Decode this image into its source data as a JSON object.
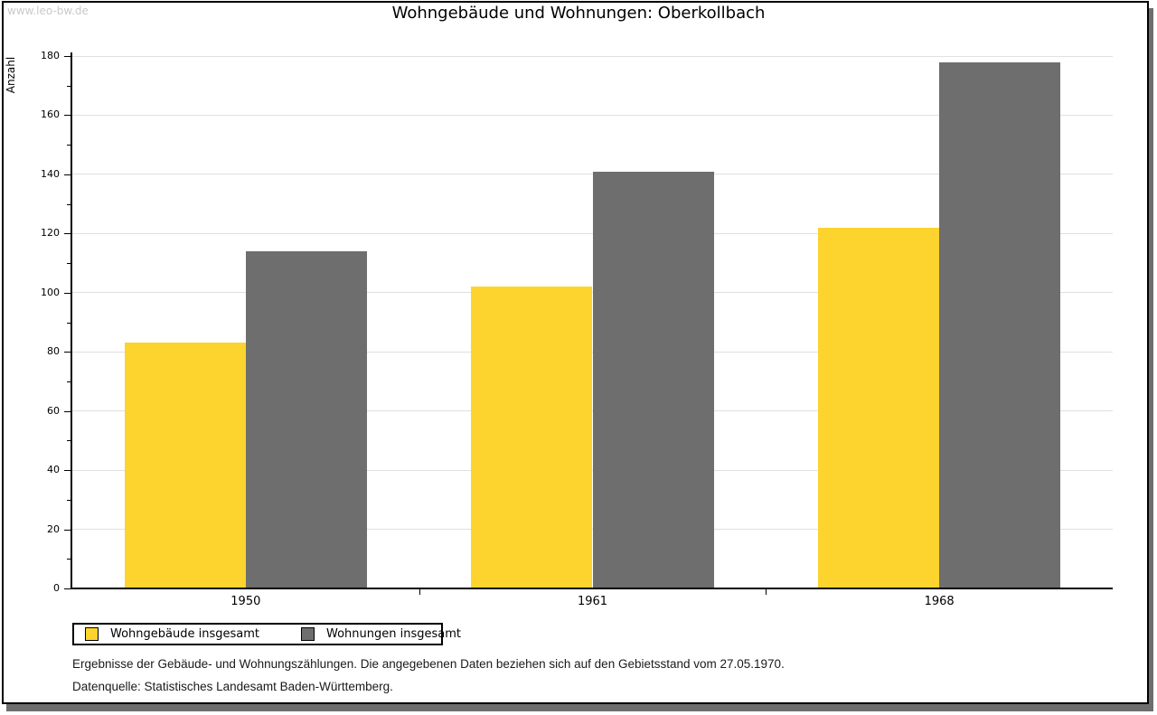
{
  "watermark": "www.leo-bw.de",
  "chart_data": {
    "type": "bar",
    "title": "Wohngebäude und Wohnungen: Oberkollbach",
    "ylabel": "Anzahl",
    "xlabel": "",
    "categories": [
      "1950",
      "1961",
      "1968"
    ],
    "series": [
      {
        "name": "Wohngebäude insgesamt",
        "color": "#fdd32e",
        "values": [
          83,
          102,
          122
        ]
      },
      {
        "name": "Wohnungen insgesamt",
        "color": "#6e6e6e",
        "values": [
          114,
          141,
          178
        ]
      }
    ],
    "ylim": [
      0,
      180
    ],
    "y_major_step": 20,
    "y_minor_step": 10,
    "grid": "horizontal-major",
    "legend_position": "bottom-left"
  },
  "frame": {
    "border_color": "#000000",
    "shadow_color": "#6e6e6e",
    "grid_color": "#e0e0e0"
  },
  "notes": {
    "line1": "Ergebnisse der Gebäude- und Wohnungszählungen. Die angegebenen Daten beziehen sich auf den Gebietsstand vom 27.05.1970.",
    "line2": "Datenquelle: Statistisches Landesamt Baden-Württemberg."
  }
}
